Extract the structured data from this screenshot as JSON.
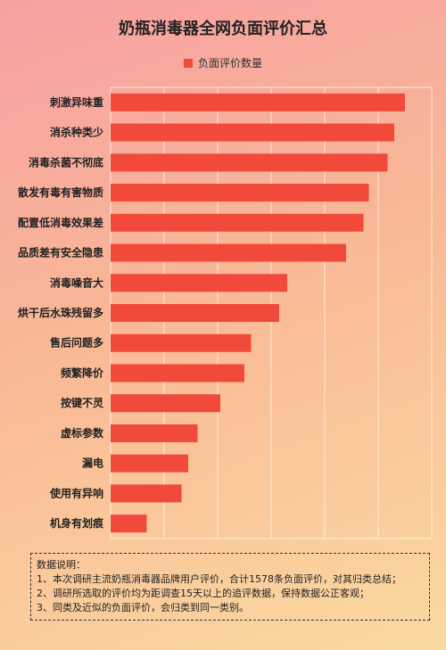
{
  "title": "奶瓶消毒器全网负面评价汇总",
  "legend_label": "负面评价数量",
  "colors": {
    "bar": "#f24a3a",
    "grid": "#ffffff"
  },
  "chart_data": {
    "type": "bar",
    "orientation": "horizontal",
    "title": "奶瓶消毒器全网负面评价汇总",
    "categories": [
      "刺激异味重",
      "消杀种类少",
      "消毒杀菌不彻底",
      "散发有毒有害物质",
      "配置低消毒效果差",
      "品质差有安全隐患",
      "消毒噪音大",
      "烘干后水珠残留多",
      "售后问题多",
      "频繁降价",
      "按键不灵",
      "虚标参数",
      "漏电",
      "使用有异响",
      "机身有划痕"
    ],
    "series": [
      {
        "name": "负面评价数量",
        "values": [
          220,
          212,
          207,
          193,
          189,
          176,
          132,
          126,
          105,
          100,
          82,
          65,
          58,
          53,
          27
        ]
      }
    ],
    "xlim": [
      0,
      240
    ],
    "grid": true,
    "legend_position": "top-center"
  },
  "notes": {
    "heading": "数据说明：",
    "lines": [
      "1、本次调研主流奶瓶消毒器品牌用户评价，合计1578条负面评价，对其归类总结；",
      "2、调研所选取的评价均为距调查15天以上的追评数据，保持数据公正客观；",
      "3、同类及近似的负面评价，会归类到同一类别。"
    ]
  }
}
